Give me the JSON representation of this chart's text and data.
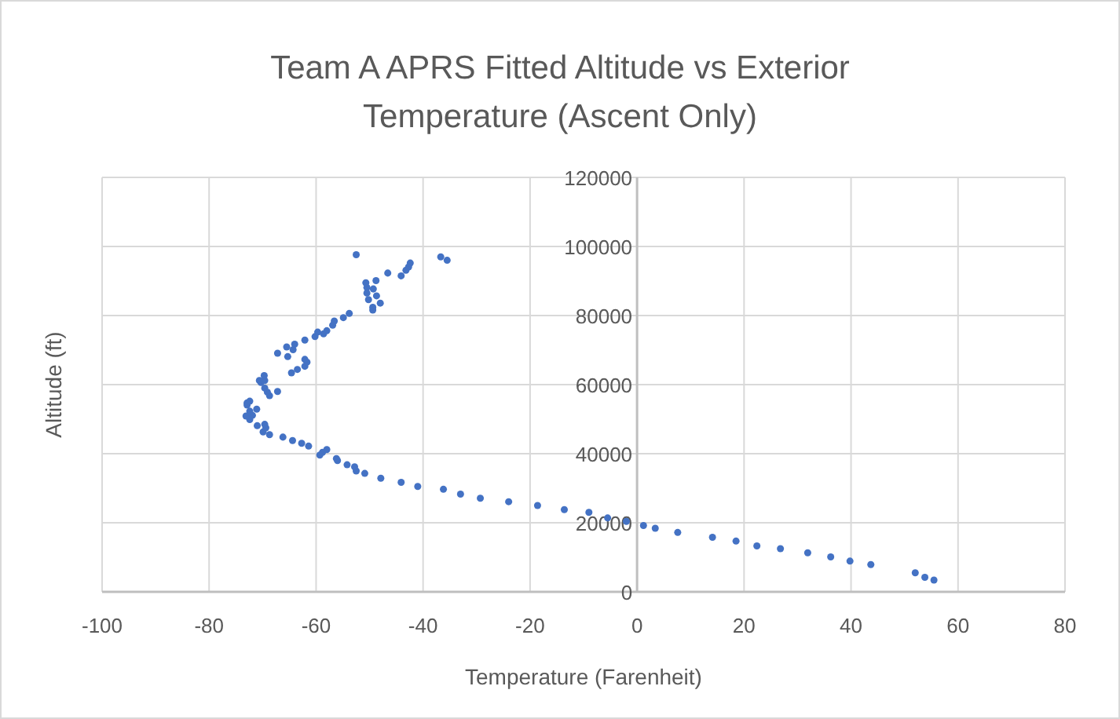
{
  "chart_data": {
    "type": "scatter",
    "title": "Team A APRS Fitted Altitude vs Exterior Temperature (Ascent Only)",
    "xlabel": "Temperature (Farenheit)",
    "ylabel": "Altitude (ft)",
    "xlim": [
      -100,
      80
    ],
    "xticks": [
      -100,
      -80,
      -60,
      -40,
      -20,
      0,
      20,
      40,
      60,
      80
    ],
    "ylim": [
      0,
      120000
    ],
    "yticks": [
      0,
      20000,
      40000,
      60000,
      80000,
      100000,
      120000
    ],
    "grid": true,
    "marker": "circle",
    "series": [
      {
        "color": "#4472c4",
        "x": [
          55.5,
          53.8,
          52.0,
          43.7,
          39.8,
          36.2,
          31.9,
          26.8,
          22.4,
          18.5,
          14.1,
          7.6,
          3.4,
          1.2,
          -2.0,
          -5.5,
          -9.0,
          -13.6,
          -18.6,
          -24.0,
          -29.3,
          -33.0,
          -36.2,
          -41.0,
          -44.1,
          -47.9,
          -50.9,
          -52.5,
          -52.8,
          -54.2,
          -56.0,
          -56.2,
          -58.0,
          -58.8,
          -59.3,
          -61.4,
          -62.7,
          -64.4,
          -66.2,
          -68.7,
          -69.9,
          -69.4,
          -69.6,
          -71.0,
          -72.4,
          -73.1,
          -71.9,
          -71.1,
          -72.4,
          -72.9,
          -72.4,
          -72.9,
          -67.2,
          -68.7,
          -69.1,
          -69.6,
          -70.3,
          -69.6,
          -70.6,
          -69.7,
          -64.6,
          -63.5,
          -62.1,
          -61.7,
          -62.1,
          -67.2,
          -65.3,
          -65.5,
          -64.3,
          -64.0,
          -62.1,
          -60.2,
          -59.7,
          -58.6,
          -58.0,
          -56.9,
          -56.6,
          -54.9,
          -53.8,
          -49.4,
          -49.4,
          -48.0,
          -50.2,
          -48.7,
          -50.5,
          -49.3,
          -50.5,
          -50.7,
          -48.8,
          -46.6,
          -44.1,
          -43.2,
          -42.7,
          -42.4,
          -52.5,
          -36.7,
          -35.5
        ],
        "values": [
          3400,
          4200,
          5500,
          7900,
          8900,
          10100,
          11300,
          12500,
          13300,
          14700,
          15800,
          17200,
          18400,
          19200,
          20400,
          21400,
          23000,
          23800,
          25000,
          26100,
          27100,
          28300,
          29700,
          30500,
          31700,
          32900,
          34300,
          35000,
          36200,
          36800,
          38000,
          38600,
          41200,
          40400,
          39600,
          42200,
          43000,
          43800,
          44800,
          45500,
          46300,
          47500,
          48500,
          48100,
          49900,
          50900,
          51100,
          52900,
          52300,
          54100,
          55200,
          54700,
          58000,
          56800,
          57800,
          59000,
          60600,
          61200,
          61200,
          62600,
          63400,
          64400,
          65300,
          66500,
          67300,
          69100,
          68100,
          70900,
          70100,
          71700,
          72900,
          73900,
          75200,
          74700,
          75600,
          77200,
          78400,
          79400,
          80600,
          81600,
          82400,
          83600,
          84600,
          85700,
          86500,
          87700,
          88100,
          89500,
          90100,
          92300,
          91500,
          93100,
          94100,
          95200,
          97600,
          97000,
          96000
        ]
      }
    ]
  }
}
